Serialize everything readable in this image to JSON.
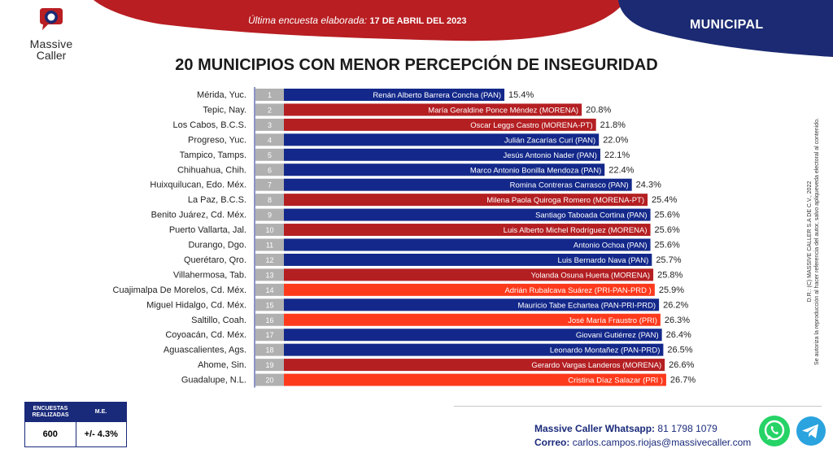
{
  "header": {
    "logo_line1": "Massive",
    "logo_line2": "Caller",
    "date_prefix": "Última encuesta elaborada:",
    "date_value": "17 DE ABRIL DEL 2023",
    "section": "MUNICIPAL"
  },
  "title": "20 MUNICIPIOS CON MENOR PERCEPCIÓN DE INSEGURIDAD",
  "colors": {
    "PAN": "#13288a",
    "MORENA": "#b41f22",
    "PRI": "#fe3a1c",
    "rank": "#b0b0b0"
  },
  "chart_data": {
    "type": "bar",
    "orientation": "horizontal",
    "categories": [
      "Mérida, Yuc.",
      "Tepic, Nay.",
      "Los Cabos, B.C.S.",
      "Progreso, Yuc.",
      "Tampico, Tamps.",
      "Chihuahua, Chih.",
      "Huixquilucan, Edo. Méx.",
      "La Paz, B.C.S.",
      "Benito Juárez, Cd. Méx.",
      "Puerto Vallarta, Jal.",
      "Durango, Dgo.",
      "Querétaro, Qro.",
      "Villahermosa, Tab.",
      "Cuajimalpa De Morelos, Cd. Méx.",
      "Miguel Hidalgo, Cd. Méx.",
      "Saltillo, Coah.",
      "Coyoacán, Cd. Méx.",
      "Aguascalientes, Ags.",
      "Ahome, Sin.",
      "Guadalupe, N.L."
    ],
    "ranks": [
      "1",
      "2",
      "3",
      "4",
      "5",
      "6",
      "7",
      "8",
      "9",
      "10",
      "11",
      "12",
      "13",
      "14",
      "15",
      "16",
      "17",
      "18",
      "19",
      "20"
    ],
    "bar_labels": [
      "Renán Alberto Barrera Concha (PAN)",
      "María Geraldine Ponce Méndez (MORENA)",
      "Oscar Leggs Castro (MORENA-PT)",
      "Julián Zacarías Curi (PAN)",
      "Jesús Antonio Nader  (PAN)",
      "Marco Antonio Bonilla Mendoza (PAN)",
      "Romina Contreras Carrasco  (PAN)",
      "Milena Paola Quiroga Romero (MORENA-PT)",
      "Santiago Taboada Cortina (PAN)",
      "Luis Alberto Michel Rodríguez (MORENA)",
      "Antonio Ochoa (PAN)",
      "Luis Bernardo Nava (PAN)",
      "Yolanda Osuna Huerta (MORENA)",
      "Adrián Rubalcava Suárez (PRI-PAN-PRD )",
      "Mauricio Tabe Echartea (PAN-PRI-PRD)",
      "José María Fraustro (PRI)",
      "Giovani Gutiérrez (PAN)",
      "Leonardo Montañez (PAN-PRD)",
      "Gerardo Vargas Landeros (MORENA)",
      "Cristina Díaz Salazar (PRI )"
    ],
    "party_color": [
      "PAN",
      "MORENA",
      "MORENA",
      "PAN",
      "PAN",
      "PAN",
      "PAN",
      "MORENA",
      "PAN",
      "MORENA",
      "PAN",
      "PAN",
      "MORENA",
      "PRI",
      "PAN",
      "PRI",
      "PAN",
      "PAN",
      "MORENA",
      "PRI"
    ],
    "values": [
      15.4,
      20.8,
      21.8,
      22.0,
      22.1,
      22.4,
      24.3,
      25.4,
      25.6,
      25.6,
      25.6,
      25.7,
      25.8,
      25.9,
      26.2,
      26.3,
      26.4,
      26.5,
      26.6,
      26.7
    ],
    "value_labels": [
      "15.4%",
      "20.8%",
      "21.8%",
      "22.0%",
      "22.1%",
      "22.4%",
      "24.3%",
      "25.4%",
      "25.6%",
      "25.6%",
      "25.6%",
      "25.7%",
      "25.8%",
      "25.9%",
      "26.2%",
      "26.3%",
      "26.4%",
      "26.5%",
      "26.6%",
      "26.7%"
    ],
    "title": "20 MUNICIPIOS CON MENOR PERCEPCIÓN DE INSEGURIDAD",
    "xlabel": "",
    "ylabel": "",
    "grid": false
  },
  "stats": {
    "col1_header": "ENCUESTAS REALIZADAS",
    "col2_header": "M.E.",
    "col1_value": "600",
    "col2_value": "+/- 4.3%"
  },
  "contact": {
    "whatsapp_label": "Massive Caller Whatsapp:",
    "whatsapp_number": "81 1798  1079",
    "email_label": "Correo:",
    "email_value": "carlos.campos.riojas@massivecaller.com"
  },
  "legal": {
    "line1": "D.R.: (C) MASSIVE CALLER S.A DE C.V., 2022",
    "line2": "Se autoriza la reproducción al hacer referencia del autor, salvo apliqueveda electoral al contenido."
  }
}
